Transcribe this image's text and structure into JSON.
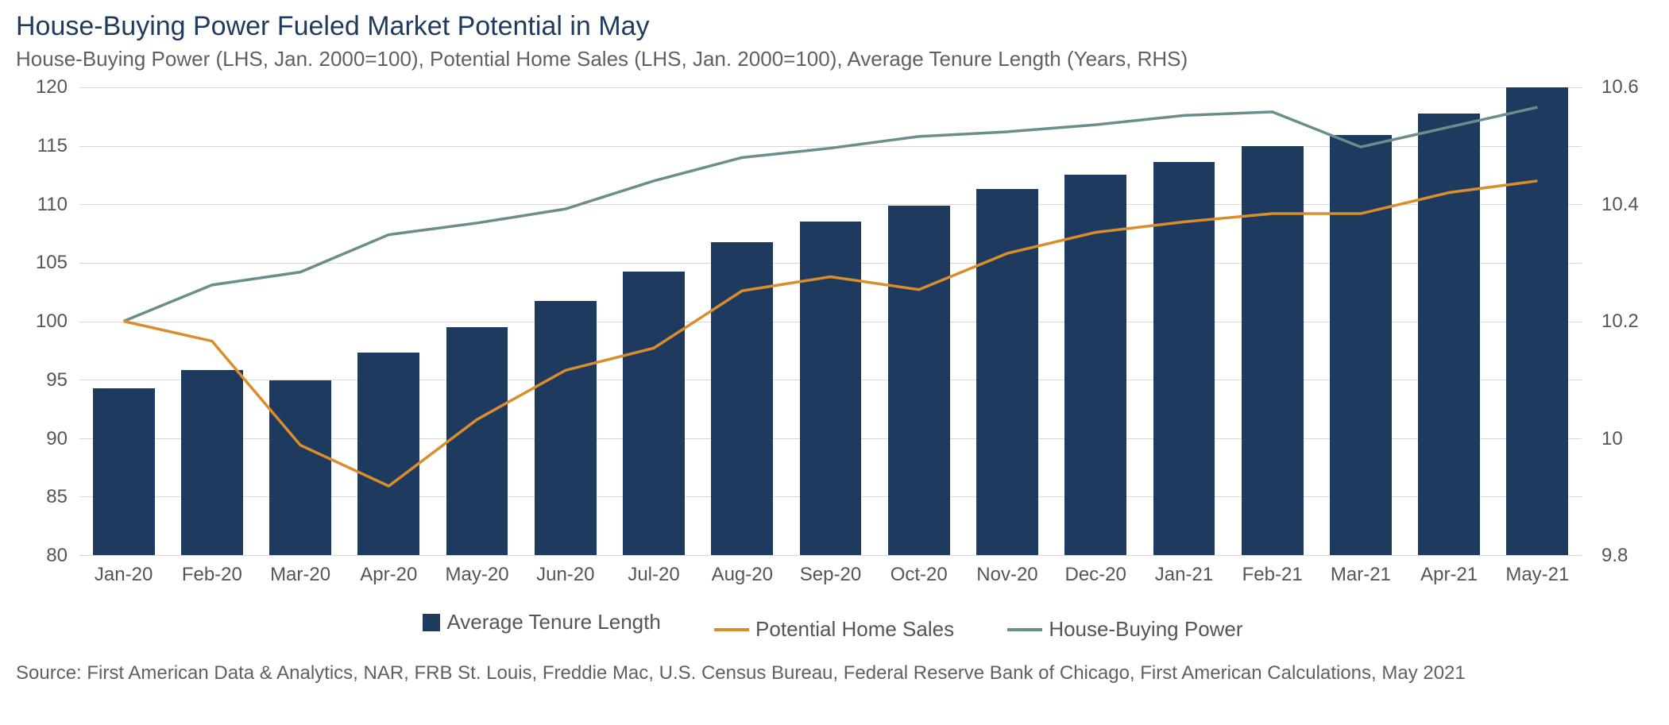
{
  "title": "House-Buying Power Fueled Market Potential in May",
  "subtitle": "House-Buying Power (LHS, Jan. 2000=100), Potential Home Sales (LHS, Jan. 2000=100), Average Tenure Length (Years, RHS)",
  "source": "Source: First American Data & Analytics, NAR, FRB St. Louis, Freddie Mac, U.S. Census Bureau, Federal Reserve Bank of Chicago, First American Calculations, May 2021",
  "colors": {
    "bar": "#1f3a5f",
    "potential_home_sales": "#d98e2b",
    "house_buying_power": "#6a8e8a",
    "grid": "#d9d9d9",
    "axis_text": "#555555",
    "title_text": "#1f3a5f",
    "subtitle_text": "#606060",
    "background": "#ffffff"
  },
  "font": {
    "family": "Segoe UI",
    "title_size": 34,
    "subtitle_size": 26,
    "axis_size": 24,
    "legend_size": 26,
    "source_size": 24
  },
  "left_axis": {
    "min": 80,
    "max": 120,
    "step": 5,
    "ticks": [
      80,
      85,
      90,
      95,
      100,
      105,
      110,
      115,
      120
    ]
  },
  "right_axis": {
    "min": 9.8,
    "max": 10.6,
    "step": 0.2,
    "ticks": [
      9.8,
      10,
      10.2,
      10.4,
      10.6
    ]
  },
  "categories": [
    "Jan-20",
    "Feb-20",
    "Mar-20",
    "Apr-20",
    "May-20",
    "Jun-20",
    "Jul-20",
    "Aug-20",
    "Sep-20",
    "Oct-20",
    "Nov-20",
    "Dec-20",
    "Jan-21",
    "Feb-21",
    "Mar-21",
    "Apr-21",
    "May-21"
  ],
  "series": {
    "avg_tenure_length": {
      "label": "Average Tenure Length",
      "type": "bar",
      "axis": "right",
      "color": "#1f3a5f",
      "bar_width_ratio": 0.7,
      "values": [
        10.085,
        10.116,
        10.099,
        10.147,
        10.19,
        10.234,
        10.285,
        10.335,
        10.37,
        10.398,
        10.426,
        10.45,
        10.472,
        10.5,
        10.518,
        10.555,
        10.6
      ]
    },
    "potential_home_sales": {
      "label": "Potential Home Sales",
      "type": "line",
      "axis": "left",
      "color": "#d98e2b",
      "line_width": 3.5,
      "values": [
        100.0,
        98.3,
        89.4,
        85.9,
        91.6,
        95.8,
        97.7,
        102.6,
        103.8,
        102.7,
        105.8,
        107.6,
        108.5,
        109.2,
        109.2,
        111.0,
        112.0
      ]
    },
    "house_buying_power": {
      "label": "House-Buying Power",
      "type": "line",
      "axis": "left",
      "color": "#6a8e8a",
      "line_width": 3.5,
      "values": [
        100.0,
        103.1,
        104.2,
        107.4,
        108.4,
        109.6,
        112.0,
        114.0,
        114.8,
        115.8,
        116.2,
        116.8,
        117.6,
        117.9,
        114.9,
        116.6,
        118.3
      ]
    }
  },
  "legend": [
    {
      "key": "avg_tenure_length",
      "label": "Average Tenure Length",
      "kind": "bar"
    },
    {
      "key": "potential_home_sales",
      "label": "Potential Home Sales",
      "kind": "line"
    },
    {
      "key": "house_buying_power",
      "label": "House-Buying Power",
      "kind": "line"
    }
  ],
  "legend_labels": {
    "avg_tenure_length": "Average Tenure Length",
    "potential_home_sales": "Potential Home Sales",
    "house_buying_power": "House-Buying Power"
  }
}
